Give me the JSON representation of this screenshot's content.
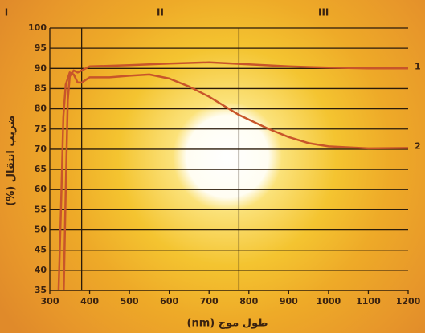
{
  "chart_data": {
    "type": "line",
    "x_label": "طول موج (nm)",
    "y_label": "ضریب انتقال (%)",
    "xlim": [
      300,
      1200
    ],
    "xticks": [
      300,
      400,
      500,
      600,
      700,
      800,
      900,
      1000,
      1100,
      1200
    ],
    "ylim": [
      35,
      100
    ],
    "yticks": [
      35,
      40,
      45,
      50,
      55,
      60,
      65,
      70,
      75,
      80,
      85,
      90,
      95,
      100
    ],
    "grid": true,
    "region_labels": [
      "I",
      "II",
      "III"
    ],
    "region_boundaries": [
      380,
      775
    ],
    "series": [
      {
        "name": "1",
        "color": "#c8552a",
        "x": [
          335,
          340,
          345,
          350,
          360,
          370,
          380,
          400,
          500,
          600,
          700,
          800,
          900,
          1000,
          1100,
          1200
        ],
        "values": [
          35,
          60,
          82,
          88,
          89.5,
          89,
          89.5,
          90.5,
          90.8,
          91.2,
          91.5,
          91,
          90.5,
          90.2,
          90,
          90
        ]
      },
      {
        "name": "2",
        "color": "#c8552a",
        "x": [
          322,
          328,
          334,
          340,
          350,
          360,
          370,
          380,
          400,
          450,
          500,
          550,
          600,
          650,
          700,
          775,
          850,
          900,
          950,
          1000,
          1100,
          1200
        ],
        "values": [
          35,
          55,
          78,
          86,
          89,
          88.5,
          86.5,
          86.5,
          87.8,
          87.8,
          88.2,
          88.5,
          87.5,
          85.5,
          83,
          78.5,
          75,
          73,
          71.5,
          70.7,
          70.2,
          70.3
        ]
      }
    ]
  }
}
